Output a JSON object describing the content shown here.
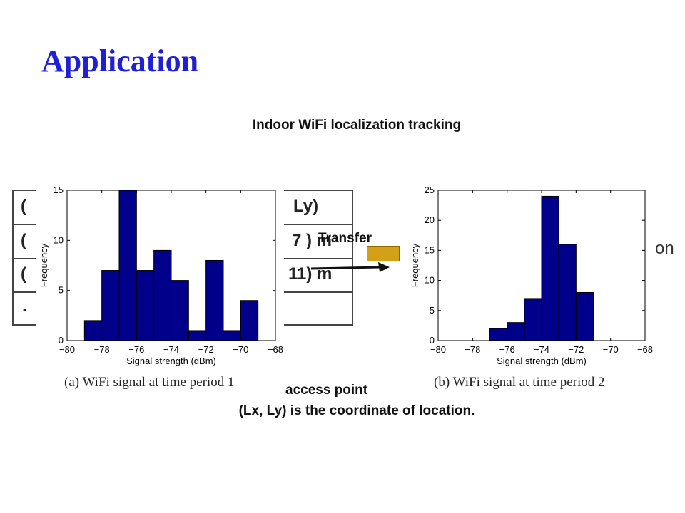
{
  "slide": {
    "title": "Application",
    "subtitle": "Indoor WiFi localization tracking",
    "transfer_label": "Transfer",
    "footer_line1": "access point",
    "footer_line2": "(Lx, Ly) is the coordinate of location.",
    "right_edge_text": "on"
  },
  "table": {
    "cells": [
      "(",
      "Ly)",
      "(",
      "7 ) m",
      "(",
      "11) m",
      "."
    ]
  },
  "colors": {
    "title": "#1f1fd6",
    "bar": "#00008b",
    "arrow_box": "#d4a017"
  },
  "chart_data": [
    {
      "type": "bar",
      "caption": "(a)  WiFi signal at time period 1",
      "xlabel": "Signal strength (dBm)",
      "ylabel": "Frequency",
      "xlim": [
        -80,
        -68
      ],
      "ylim": [
        0,
        15
      ],
      "xticks": [
        -80,
        -78,
        -76,
        -74,
        -72,
        -70,
        -68
      ],
      "yticks": [
        0,
        5,
        10,
        15
      ],
      "bin_width": 1,
      "x": [
        -78.5,
        -77.5,
        -76.5,
        -75.5,
        -74.5,
        -73.5,
        -72.5,
        -71.5,
        -70.5,
        -69.5
      ],
      "values": [
        2,
        7,
        15,
        7,
        9,
        6,
        1,
        8,
        1,
        4
      ]
    },
    {
      "type": "bar",
      "caption": "(b)  WiFi signal at time period 2",
      "xlabel": "Signal strength (dBm)",
      "ylabel": "Frequency",
      "xlim": [
        -80,
        -68
      ],
      "ylim": [
        0,
        25
      ],
      "xticks": [
        -80,
        -78,
        -76,
        -74,
        -72,
        -70,
        -68
      ],
      "yticks": [
        0,
        5,
        10,
        15,
        20,
        25
      ],
      "bin_width": 1,
      "x": [
        -76.5,
        -75.5,
        -74.5,
        -73.5,
        -72.5,
        -71.5
      ],
      "values": [
        2,
        3,
        7,
        24,
        16,
        8
      ]
    }
  ]
}
